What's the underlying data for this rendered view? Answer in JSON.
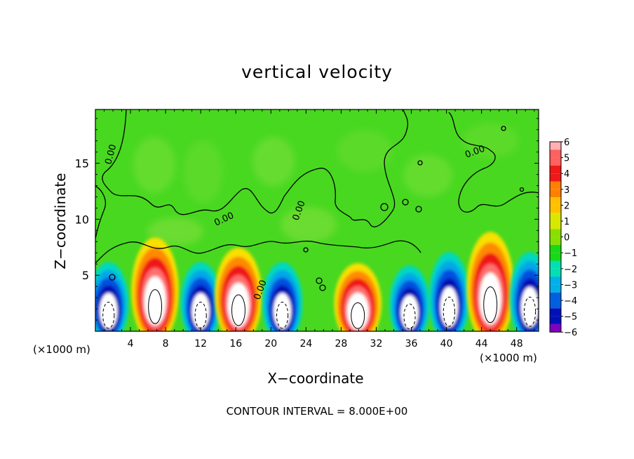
{
  "chart_data": {
    "type": "heatmap",
    "title": "vertical velocity",
    "xlabel": "X−coordinate",
    "ylabel": "Z−coordinate",
    "x_unit_label": "(×1000 m)",
    "x_ticks": [
      "4",
      "8",
      "12",
      "16",
      "20",
      "24",
      "28",
      "32",
      "36",
      "40",
      "44",
      "48"
    ],
    "y_ticks": [
      "5",
      "10",
      "15"
    ],
    "xlim": [
      0,
      50.5
    ],
    "ylim": [
      0,
      19.8
    ],
    "footer": "CONTOUR INTERVAL = 8.000E+00",
    "contour_labels": [
      "0.00",
      "0.00",
      "0.00",
      "0.00",
      "0.00"
    ],
    "colorbar": {
      "labels": [
        "6",
        "5",
        "4",
        "3",
        "2",
        "1",
        "0",
        "−1",
        "−2",
        "−3",
        "−4",
        "−5",
        "−6"
      ],
      "colors": [
        "#ffb0b0",
        "#ff6060",
        "#f01818",
        "#ff8000",
        "#ffc000",
        "#d8e800",
        "#88e000",
        "#18d818",
        "#00e0b0",
        "#00b0e8",
        "#0060e0",
        "#0010b8",
        "#8000c0"
      ]
    },
    "cells": [
      {
        "x": 1.5,
        "zmax": 6.3,
        "sign": "neg"
      },
      {
        "x": 6.8,
        "zmax": 8.5,
        "sign": "pos"
      },
      {
        "x": 12.0,
        "zmax": 6.3,
        "sign": "neg"
      },
      {
        "x": 16.3,
        "zmax": 7.6,
        "sign": "pos"
      },
      {
        "x": 21.3,
        "zmax": 6.3,
        "sign": "neg"
      },
      {
        "x": 29.9,
        "zmax": 6.2,
        "sign": "pos"
      },
      {
        "x": 35.8,
        "zmax": 6.0,
        "sign": "neg"
      },
      {
        "x": 40.3,
        "zmax": 7.2,
        "sign": "neg"
      },
      {
        "x": 45.0,
        "zmax": 9.0,
        "sign": "pos"
      },
      {
        "x": 49.5,
        "zmax": 7.2,
        "sign": "neg"
      }
    ]
  }
}
